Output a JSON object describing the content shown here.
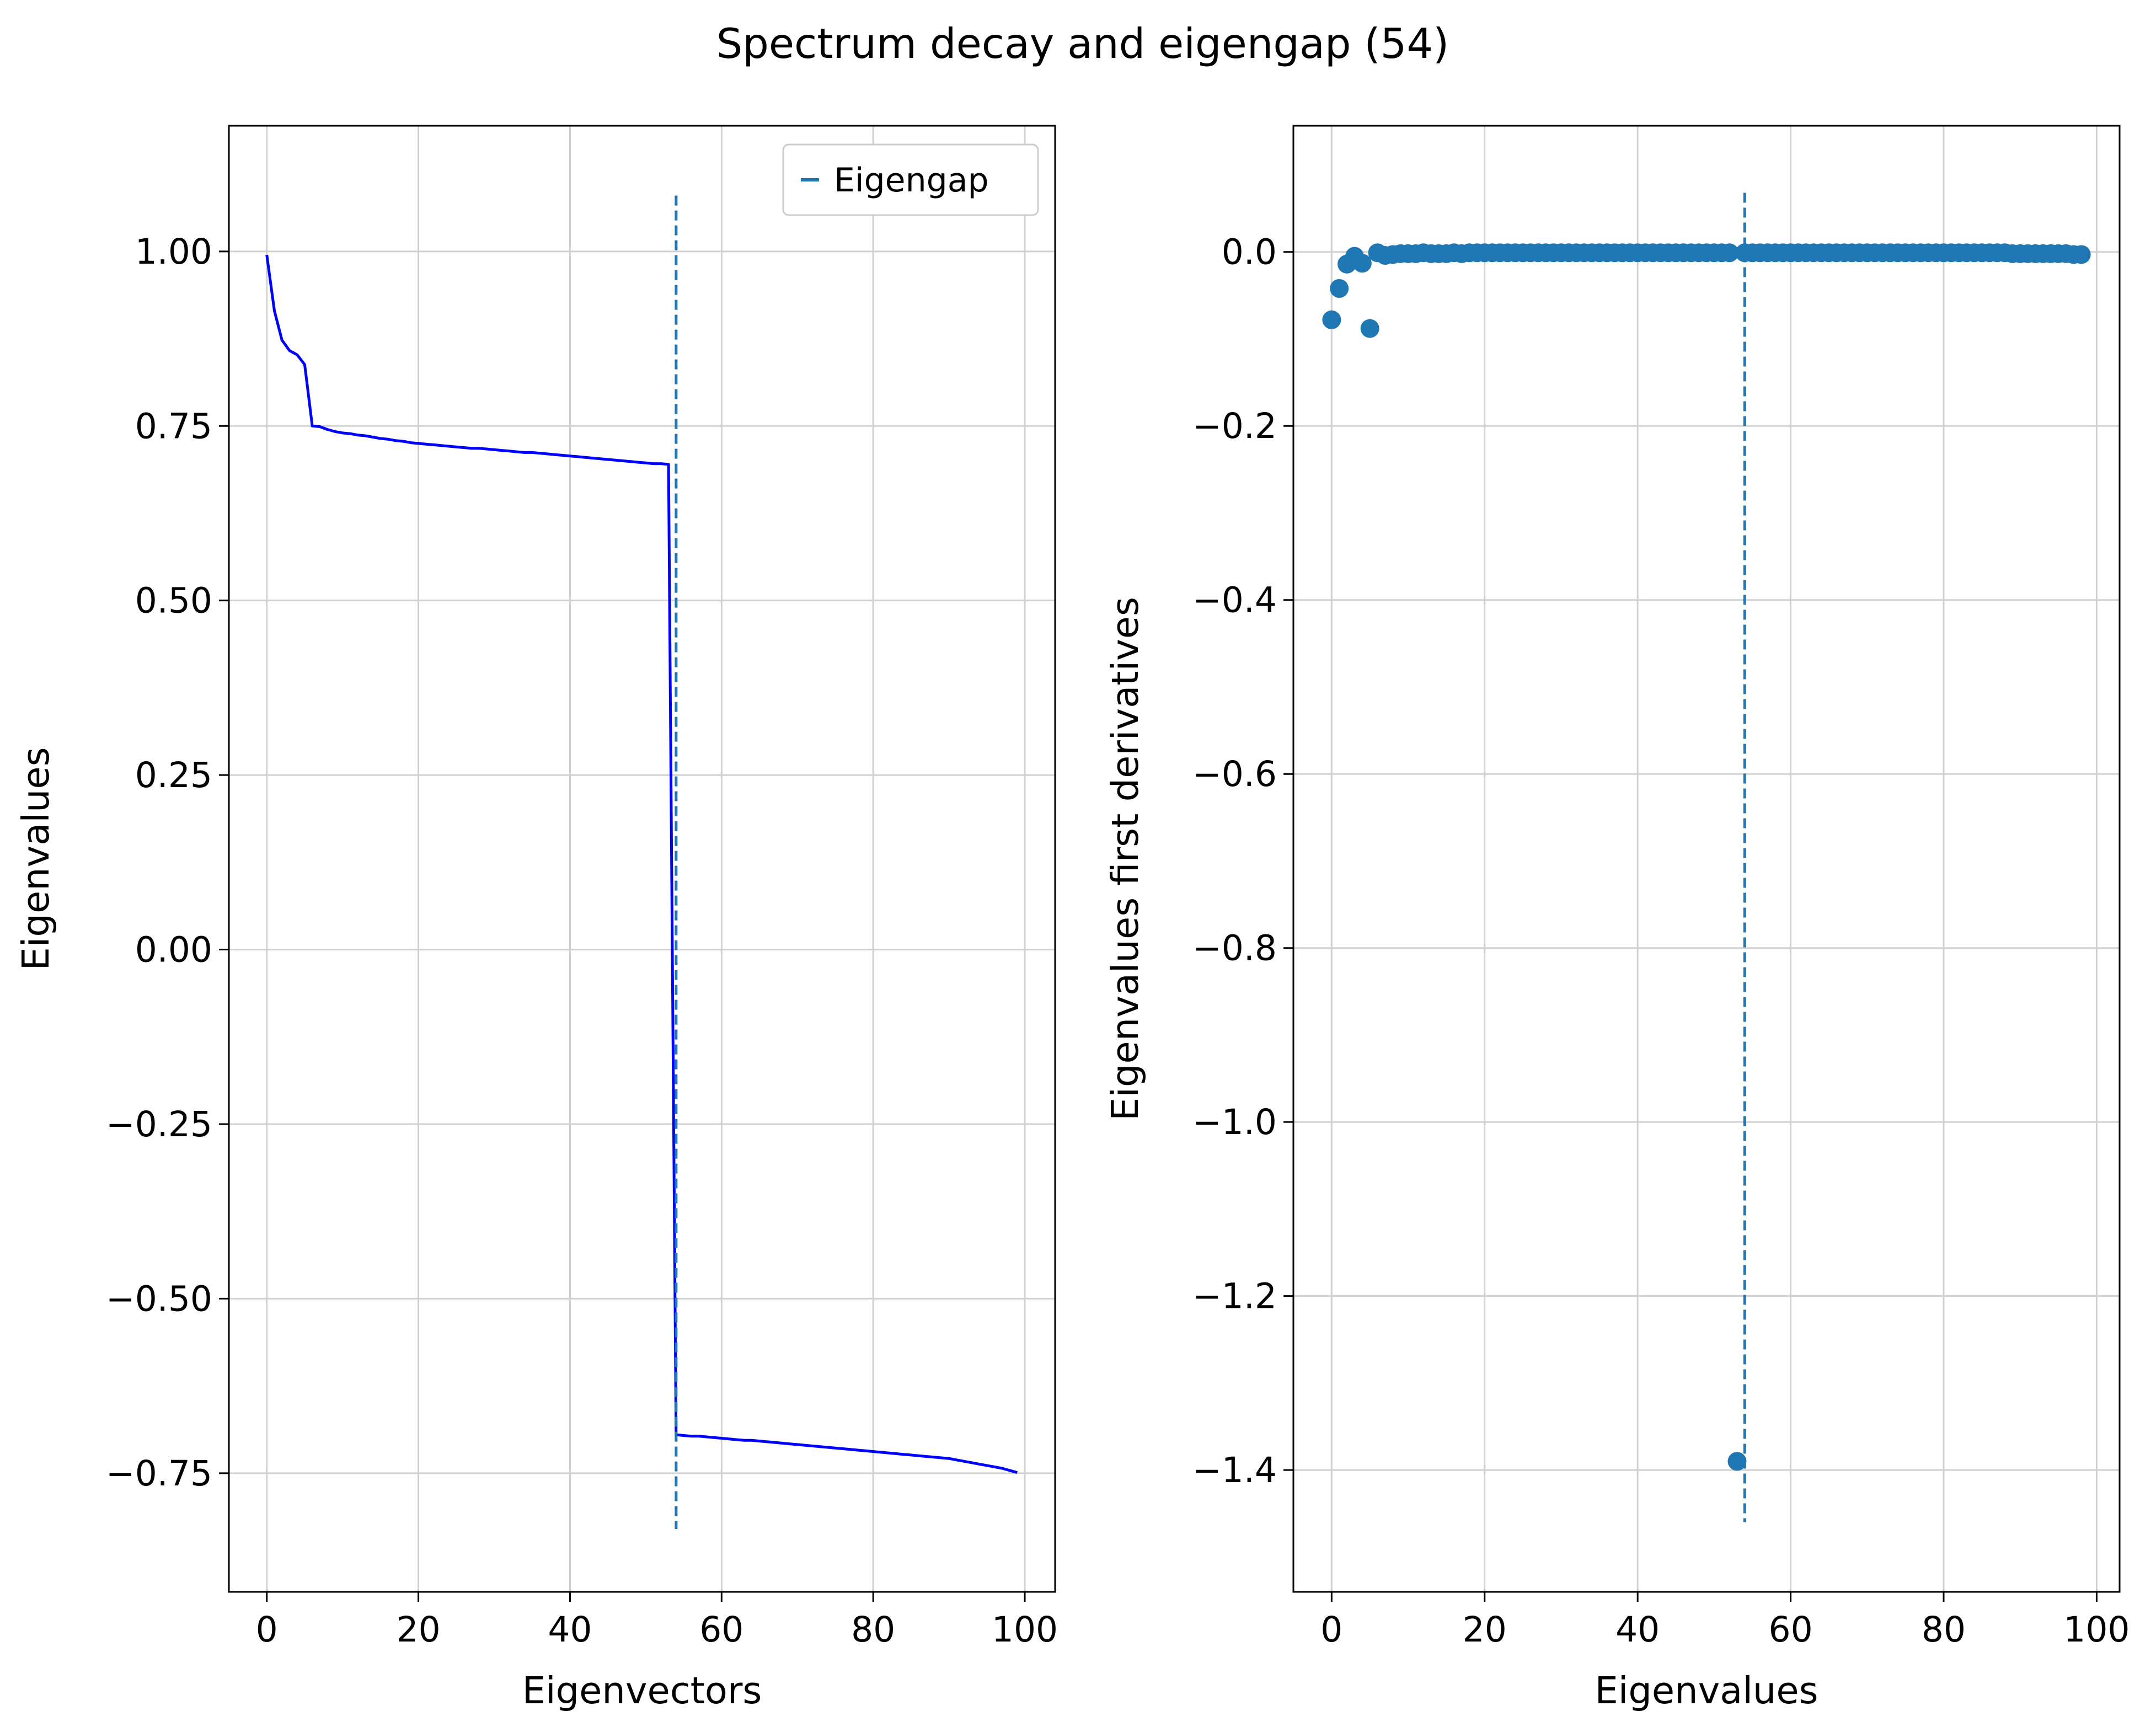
{
  "figure": {
    "title": "Spectrum decay and eigengap (54)"
  },
  "chart_data": [
    {
      "type": "line",
      "xlabel": "Eigenvectors",
      "ylabel": "Eigenvalues",
      "xlim": [
        -5,
        104
      ],
      "ylim": [
        -0.92,
        1.18
      ],
      "xticks": [
        0,
        20,
        40,
        60,
        80,
        100
      ],
      "xtick_labels": [
        "0",
        "20",
        "40",
        "60",
        "80",
        "100"
      ],
      "yticks": [
        1.0,
        0.75,
        0.5,
        0.25,
        0.0,
        -0.25,
        -0.5,
        -0.75
      ],
      "ytick_labels": [
        "1.00",
        "0.75",
        "0.50",
        "0.25",
        "0.00",
        "−0.25",
        "−0.50",
        "−0.75"
      ],
      "grid": true,
      "legend": {
        "placement": "top-right",
        "entries": [
          "Eigengap"
        ]
      },
      "series": [
        {
          "color": "#0000ff",
          "x": [
            0,
            1,
            2,
            3,
            4,
            5,
            6,
            7,
            8,
            9,
            10,
            11,
            12,
            13,
            14,
            15,
            16,
            17,
            18,
            19,
            20,
            21,
            22,
            23,
            24,
            25,
            26,
            27,
            28,
            29,
            30,
            31,
            32,
            33,
            34,
            35,
            36,
            37,
            38,
            39,
            40,
            41,
            42,
            43,
            44,
            45,
            46,
            47,
            48,
            49,
            50,
            51,
            52,
            53,
            54,
            55,
            56,
            57,
            58,
            59,
            60,
            61,
            62,
            63,
            64,
            65,
            66,
            67,
            68,
            69,
            70,
            71,
            72,
            73,
            74,
            75,
            76,
            77,
            78,
            79,
            80,
            81,
            82,
            83,
            84,
            85,
            86,
            87,
            88,
            89,
            90,
            91,
            92,
            93,
            94,
            95,
            96,
            97,
            98,
            99
          ],
          "y": [
            0.995,
            0.915,
            0.873,
            0.858,
            0.852,
            0.838,
            0.75,
            0.749,
            0.745,
            0.742,
            0.74,
            0.739,
            0.737,
            0.736,
            0.734,
            0.732,
            0.731,
            0.729,
            0.728,
            0.726,
            0.725,
            0.724,
            0.723,
            0.722,
            0.721,
            0.72,
            0.719,
            0.718,
            0.718,
            0.717,
            0.716,
            0.715,
            0.714,
            0.713,
            0.712,
            0.712,
            0.711,
            0.71,
            0.709,
            0.708,
            0.707,
            0.706,
            0.705,
            0.704,
            0.703,
            0.702,
            0.701,
            0.7,
            0.699,
            0.698,
            0.697,
            0.696,
            0.696,
            0.695,
            -0.695,
            -0.696,
            -0.697,
            -0.697,
            -0.698,
            -0.699,
            -0.7,
            -0.701,
            -0.702,
            -0.703,
            -0.703,
            -0.704,
            -0.705,
            -0.706,
            -0.707,
            -0.708,
            -0.709,
            -0.71,
            -0.711,
            -0.712,
            -0.713,
            -0.714,
            -0.715,
            -0.716,
            -0.717,
            -0.718,
            -0.719,
            -0.72,
            -0.721,
            -0.722,
            -0.723,
            -0.724,
            -0.725,
            -0.726,
            -0.727,
            -0.728,
            -0.729,
            -0.731,
            -0.733,
            -0.735,
            -0.737,
            -0.739,
            -0.741,
            -0.743,
            -0.746,
            -0.749
          ]
        }
      ],
      "vline": {
        "name": "Eigengap",
        "x": 54,
        "y_range": [
          -0.83,
          1.08
        ],
        "color": "#1f77b4",
        "style": "dashed"
      }
    },
    {
      "type": "scatter",
      "xlabel": "Eigenvalues",
      "ylabel": "Eigenvalues first derivatives",
      "xlim": [
        -5,
        103
      ],
      "ylim": [
        -1.54,
        0.145
      ],
      "xticks": [
        0,
        20,
        40,
        60,
        80,
        100
      ],
      "xtick_labels": [
        "0",
        "20",
        "40",
        "60",
        "80",
        "100"
      ],
      "yticks": [
        0.0,
        -0.2,
        -0.4,
        -0.6,
        -0.8,
        -1.0,
        -1.2,
        -1.4
      ],
      "ytick_labels": [
        "0.0",
        "−0.2",
        "−0.4",
        "−0.6",
        "−0.8",
        "−1.0",
        "−1.2",
        "−1.4"
      ],
      "grid": true,
      "series": [
        {
          "color": "#1f77b4",
          "x": [
            0,
            1,
            2,
            3,
            4,
            5,
            6,
            7,
            8,
            9,
            10,
            11,
            12,
            13,
            14,
            15,
            16,
            17,
            18,
            19,
            20,
            21,
            22,
            23,
            24,
            25,
            26,
            27,
            28,
            29,
            30,
            31,
            32,
            33,
            34,
            35,
            36,
            37,
            38,
            39,
            40,
            41,
            42,
            43,
            44,
            45,
            46,
            47,
            48,
            49,
            50,
            51,
            52,
            53,
            54,
            55,
            56,
            57,
            58,
            59,
            60,
            61,
            62,
            63,
            64,
            65,
            66,
            67,
            68,
            69,
            70,
            71,
            72,
            73,
            74,
            75,
            76,
            77,
            78,
            79,
            80,
            81,
            82,
            83,
            84,
            85,
            86,
            87,
            88,
            89,
            90,
            91,
            92,
            93,
            94,
            95,
            96,
            97,
            98
          ],
          "y": [
            -0.078,
            -0.042,
            -0.014,
            -0.005,
            -0.013,
            -0.088,
            -0.001,
            -0.004,
            -0.003,
            -0.002,
            -0.002,
            -0.002,
            -0.001,
            -0.002,
            -0.002,
            -0.002,
            -0.001,
            -0.002,
            -0.001,
            -0.001,
            -0.001,
            -0.001,
            -0.001,
            -0.001,
            -0.001,
            -0.001,
            -0.001,
            -0.001,
            -0.001,
            -0.001,
            -0.001,
            -0.001,
            -0.001,
            -0.001,
            -0.001,
            -0.001,
            -0.001,
            -0.001,
            -0.001,
            -0.001,
            -0.001,
            -0.001,
            -0.001,
            -0.001,
            -0.001,
            -0.001,
            -0.001,
            -0.001,
            -0.001,
            -0.001,
            -0.001,
            -0.001,
            -0.001,
            -1.39,
            -0.001,
            -0.001,
            -0.001,
            -0.001,
            -0.001,
            -0.001,
            -0.001,
            -0.001,
            -0.001,
            -0.001,
            -0.001,
            -0.001,
            -0.001,
            -0.001,
            -0.001,
            -0.001,
            -0.001,
            -0.001,
            -0.001,
            -0.001,
            -0.001,
            -0.001,
            -0.001,
            -0.001,
            -0.001,
            -0.001,
            -0.001,
            -0.001,
            -0.001,
            -0.001,
            -0.001,
            -0.001,
            -0.001,
            -0.001,
            -0.001,
            -0.002,
            -0.002,
            -0.002,
            -0.002,
            -0.002,
            -0.002,
            -0.002,
            -0.002,
            -0.003,
            -0.003
          ]
        }
      ],
      "vline": {
        "x": 54,
        "y_range": [
          -1.46,
          0.068
        ],
        "color": "#1f77b4",
        "style": "dashed"
      }
    }
  ]
}
